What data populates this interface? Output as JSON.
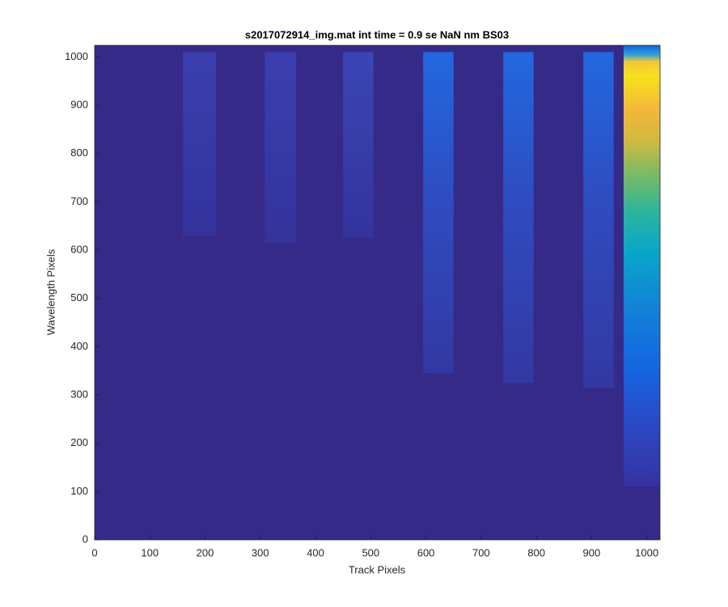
{
  "chart_data": {
    "type": "heatmap",
    "title": "s2017072914_img.mat int time = 0.9 se  NaN nm BS03",
    "xlabel": "Track Pixels",
    "ylabel": "Wavelength Pixels",
    "xlim": [
      0,
      1024
    ],
    "ylim": [
      0,
      1024
    ],
    "xticks": [
      0,
      100,
      200,
      300,
      400,
      500,
      600,
      700,
      800,
      900,
      1000
    ],
    "yticks": [
      0,
      100,
      200,
      300,
      400,
      500,
      600,
      700,
      800,
      900,
      1000
    ],
    "background": "#352a87",
    "regions": [
      {
        "x": [
          160,
          220
        ],
        "y": [
          630,
          1010
        ],
        "stops": [
          [
            630,
            "#34339c"
          ],
          [
            1010,
            "#3a3fae"
          ]
        ]
      },
      {
        "x": [
          308,
          365
        ],
        "y": [
          615,
          1010
        ],
        "stops": [
          [
            615,
            "#34339c"
          ],
          [
            1010,
            "#3a3fae"
          ]
        ]
      },
      {
        "x": [
          450,
          505
        ],
        "y": [
          625,
          1010
        ],
        "stops": [
          [
            625,
            "#34339c"
          ],
          [
            1010,
            "#3a45b4"
          ]
        ]
      },
      {
        "x": [
          595,
          650
        ],
        "y": [
          345,
          1010
        ],
        "stops": [
          [
            345,
            "#3338a2"
          ],
          [
            700,
            "#2f4cc0"
          ],
          [
            1010,
            "#2268e0"
          ]
        ]
      },
      {
        "x": [
          740,
          795
        ],
        "y": [
          325,
          1010
        ],
        "stops": [
          [
            325,
            "#3338a2"
          ],
          [
            700,
            "#2f4cc0"
          ],
          [
            1010,
            "#2268e0"
          ]
        ]
      },
      {
        "x": [
          885,
          940
        ],
        "y": [
          315,
          1010
        ],
        "stops": [
          [
            315,
            "#3338a2"
          ],
          [
            700,
            "#2f4cc0"
          ],
          [
            1010,
            "#2268e0"
          ]
        ]
      },
      {
        "x": [
          958,
          1024
        ],
        "y": [
          110,
          1024
        ],
        "stops": [
          [
            110,
            "#3532a0"
          ],
          [
            250,
            "#2a4bc8"
          ],
          [
            350,
            "#1563e0"
          ],
          [
            480,
            "#1282d8"
          ],
          [
            600,
            "#08a8c8"
          ],
          [
            680,
            "#2cb59c"
          ],
          [
            760,
            "#7dbb62"
          ],
          [
            830,
            "#d4b93e"
          ],
          [
            890,
            "#f2b83a"
          ],
          [
            960,
            "#f8e11a"
          ],
          [
            990,
            "#f2c83a"
          ],
          [
            1005,
            "#2ba0d8"
          ],
          [
            1024,
            "#1462d8"
          ]
        ]
      }
    ]
  }
}
